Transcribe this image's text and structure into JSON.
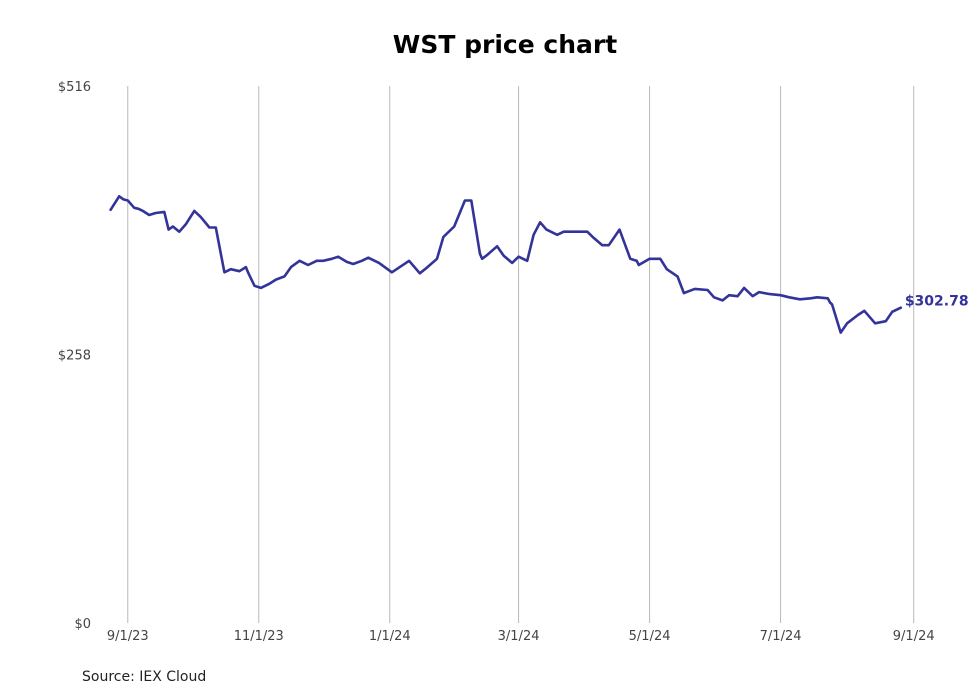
{
  "chart_data": {
    "type": "line",
    "title": "WST price chart",
    "source": "Source: IEX Cloud",
    "xlabel": "",
    "ylabel": "",
    "ylim": [
      0,
      516
    ],
    "xlim": [
      "2023-08-20",
      "2024-09-03"
    ],
    "y_ticks": [
      {
        "value": 0,
        "label": "$0"
      },
      {
        "value": 258,
        "label": "$258"
      },
      {
        "value": 516,
        "label": "$516"
      }
    ],
    "x_ticks": [
      {
        "date": "2023-09-01",
        "label": "9/1/23"
      },
      {
        "date": "2023-11-01",
        "label": "11/1/23"
      },
      {
        "date": "2024-01-01",
        "label": "1/1/24"
      },
      {
        "date": "2024-03-01",
        "label": "3/1/24"
      },
      {
        "date": "2024-05-01",
        "label": "5/1/24"
      },
      {
        "date": "2024-07-01",
        "label": "7/1/24"
      },
      {
        "date": "2024-09-01",
        "label": "9/1/24"
      }
    ],
    "grid": "vertical",
    "line_color": "#33339a",
    "last_value_label": "$302.78",
    "series": [
      {
        "x": [
          "2023-08-24",
          "2023-08-28",
          "2023-08-30",
          "2023-09-01",
          "2023-09-04",
          "2023-09-06",
          "2023-09-08",
          "2023-09-11",
          "2023-09-14",
          "2023-09-18",
          "2023-09-20",
          "2023-09-22",
          "2023-09-25",
          "2023-09-28",
          "2023-10-02",
          "2023-10-05",
          "2023-10-09",
          "2023-10-12",
          "2023-10-16",
          "2023-10-19",
          "2023-10-23",
          "2023-10-26",
          "2023-10-27",
          "2023-10-30",
          "2023-11-02",
          "2023-11-06",
          "2023-11-09",
          "2023-11-13",
          "2023-11-16",
          "2023-11-20",
          "2023-11-24",
          "2023-11-28",
          "2023-12-01",
          "2023-12-05",
          "2023-12-08",
          "2023-12-12",
          "2023-12-15",
          "2023-12-19",
          "2023-12-22",
          "2023-12-27",
          "2024-01-02",
          "2024-01-05",
          "2024-01-10",
          "2024-01-15",
          "2024-01-18",
          "2024-01-23",
          "2024-01-26",
          "2024-01-31",
          "2024-02-05",
          "2024-02-08",
          "2024-02-12",
          "2024-02-13",
          "2024-02-15",
          "2024-02-20",
          "2024-02-23",
          "2024-02-27",
          "2024-03-01",
          "2024-03-05",
          "2024-03-08",
          "2024-03-11",
          "2024-03-14",
          "2024-03-19",
          "2024-03-22",
          "2024-03-27",
          "2024-04-02",
          "2024-04-05",
          "2024-04-09",
          "2024-04-12",
          "2024-04-17",
          "2024-04-22",
          "2024-04-25",
          "2024-04-26",
          "2024-05-01",
          "2024-05-06",
          "2024-05-09",
          "2024-05-14",
          "2024-05-17",
          "2024-05-22",
          "2024-05-28",
          "2024-05-31",
          "2024-06-04",
          "2024-06-07",
          "2024-06-11",
          "2024-06-14",
          "2024-06-18",
          "2024-06-21",
          "2024-06-26",
          "2024-07-01",
          "2024-07-05",
          "2024-07-10",
          "2024-07-15",
          "2024-07-18",
          "2024-07-23",
          "2024-07-24",
          "2024-07-25",
          "2024-07-29",
          "2024-08-01",
          "2024-08-06",
          "2024-08-09",
          "2024-08-14",
          "2024-08-19",
          "2024-08-22",
          "2024-08-26"
        ],
        "y": [
          397,
          410,
          407,
          406,
          399,
          398,
          396,
          392,
          394,
          395,
          378,
          381,
          376,
          383,
          396,
          390,
          380,
          380,
          337,
          340,
          338,
          342,
          337,
          324,
          322,
          326,
          330,
          333,
          342,
          348,
          344,
          348,
          348,
          350,
          352,
          347,
          345,
          348,
          351,
          346,
          337,
          341,
          348,
          336,
          341,
          350,
          371,
          381,
          406,
          406,
          355,
          350,
          353,
          362,
          353,
          346,
          352,
          348,
          373,
          385,
          378,
          373,
          376,
          376,
          376,
          370,
          363,
          363,
          378,
          350,
          348,
          344,
          350,
          350,
          340,
          333,
          317,
          321,
          320,
          313,
          310,
          315,
          314,
          322,
          314,
          318,
          316,
          315,
          313,
          311,
          312,
          313,
          312,
          308,
          306,
          279,
          288,
          296,
          300,
          288,
          290,
          299,
          303
        ]
      }
    ]
  }
}
